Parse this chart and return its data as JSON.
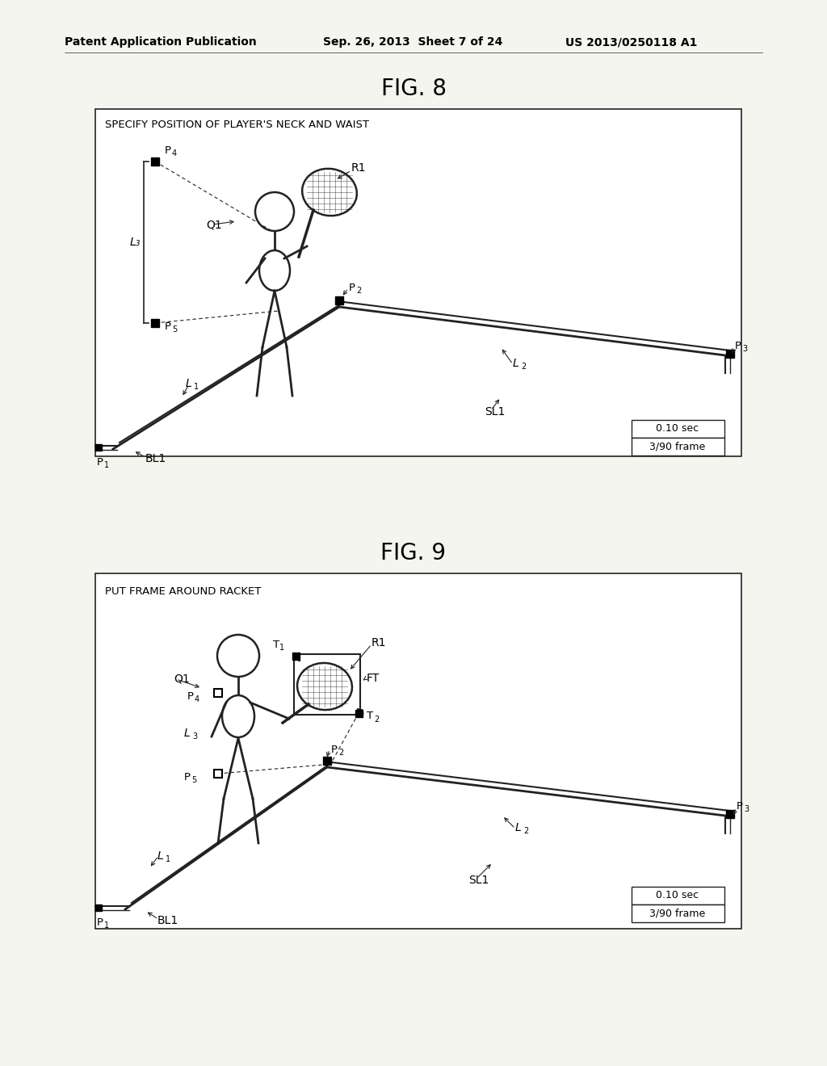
{
  "bg_color": "#f5f5f0",
  "page_header": {
    "left": "Patent Application Publication",
    "center": "Sep. 26, 2013  Sheet 7 of 24",
    "right": "US 2013/0250118 A1"
  },
  "fig8": {
    "title": "FIG. 8",
    "label": "SPECIFY POSITION OF PLAYER'S NECK AND WAIST",
    "time_label": "0.10 sec",
    "frame_label": "3/90 frame"
  },
  "fig9": {
    "title": "FIG. 9",
    "label": "PUT FRAME AROUND RACKET",
    "time_label": "0.10 sec",
    "frame_label": "3/90 frame"
  }
}
